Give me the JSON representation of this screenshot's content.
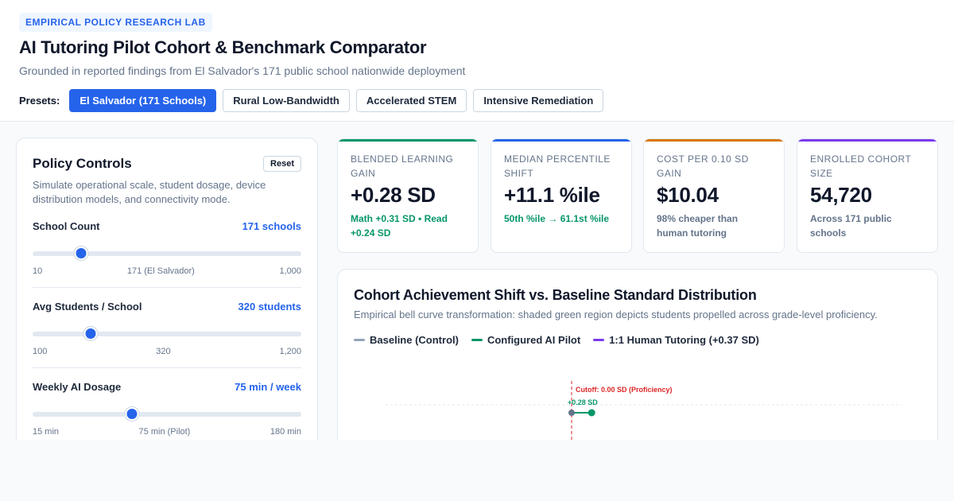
{
  "header": {
    "badge": "EMPIRICAL POLICY RESEARCH LAB",
    "title": "AI Tutoring Pilot Cohort & Benchmark Comparator",
    "subtitle": "Grounded in reported findings from El Salvador's 171 public school nationwide deployment",
    "presets_label": "Presets:",
    "presets": [
      {
        "label": "El Salvador (171 Schools)",
        "active": true
      },
      {
        "label": "Rural Low-Bandwidth",
        "active": false
      },
      {
        "label": "Accelerated STEM",
        "active": false
      },
      {
        "label": "Intensive Remediation",
        "active": false
      }
    ]
  },
  "controls": {
    "title": "Policy Controls",
    "reset_label": "Reset",
    "description": "Simulate operational scale, student dosage, device distribution models, and connectivity mode.",
    "sliders": [
      {
        "label": "School Count",
        "value_text": "171 schools",
        "min_label": "10",
        "mid_label": "171 (El Salvador)",
        "max_label": "1,000",
        "fraction": 0.18
      },
      {
        "label": "Avg Students / School",
        "value_text": "320 students",
        "min_label": "100",
        "mid_label": "320",
        "max_label": "1,200",
        "fraction": 0.215
      },
      {
        "label": "Weekly AI Dosage",
        "value_text": "75 min / week",
        "min_label": "15 min",
        "mid_label": "75 min (Pilot)",
        "max_label": "180 min",
        "fraction": 0.37
      }
    ]
  },
  "kpis": [
    {
      "label": "Blended Learning Gain",
      "value": "+0.28 SD",
      "sub": "Math +0.31 SD • Read +0.24 SD",
      "tone": "green",
      "accent": "#059669"
    },
    {
      "label": "Median Percentile Shift",
      "value": "+11.1 %ile",
      "sub": "50th %ile → 61.1st %ile",
      "tone": "green",
      "accent": "#2563eb"
    },
    {
      "label": "Cost per 0.10 SD Gain",
      "value": "$10.04",
      "sub": "98% cheaper than human tutoring",
      "tone": "gray",
      "accent": "#d97706"
    },
    {
      "label": "Enrolled Cohort Size",
      "value": "54,720",
      "sub": "Across 171 public schools",
      "tone": "gray",
      "accent": "#7c3aed"
    }
  ],
  "chart": {
    "title": "Cohort Achievement Shift vs. Baseline Standard Distribution",
    "description": "Empirical bell curve transformation: shaded green region depicts students propelled across grade-level proficiency.",
    "legend": [
      {
        "label": "Baseline (Control)",
        "color": "#94a3b8"
      },
      {
        "label": "Configured AI Pilot",
        "color": "#059669"
      },
      {
        "label": "1:1 Human Tutoring (+0.37 SD)",
        "color": "#7c3aed"
      }
    ],
    "cutoff_label": "Cutoff: 0.00 SD (Proficiency)",
    "shift_label": "+0.28 SD",
    "colors": {
      "cutoff": "#dc2626",
      "baseline": "#64748b",
      "pilot": "#059669"
    }
  },
  "chart_data": {
    "type": "line",
    "series": [
      {
        "name": "Baseline (Control)",
        "mean_sd": 0.0
      },
      {
        "name": "Configured AI Pilot",
        "mean_sd": 0.28
      },
      {
        "name": "1:1 Human Tutoring (+0.37 SD)",
        "mean_sd": 0.37
      }
    ],
    "cutoff_sd": 0.0,
    "annotations": [
      "Cutoff: 0.00 SD (Proficiency)",
      "+0.28 SD"
    ]
  }
}
